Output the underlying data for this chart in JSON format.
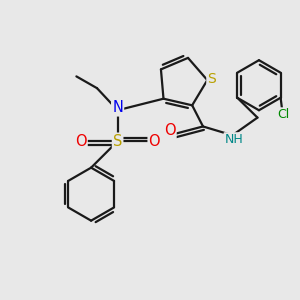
{
  "bg_color": "#e8e8e8",
  "bond_color": "#1a1a1a",
  "bond_width": 1.6,
  "dbl_sep": 0.12,
  "atom_colors": {
    "S_th": "#b8a000",
    "S_sul": "#b8a000",
    "N": "#0000ee",
    "O": "#ee0000",
    "Cl": "#008800",
    "NH": "#008888",
    "C": "#1a1a1a"
  },
  "fs": 9.5
}
